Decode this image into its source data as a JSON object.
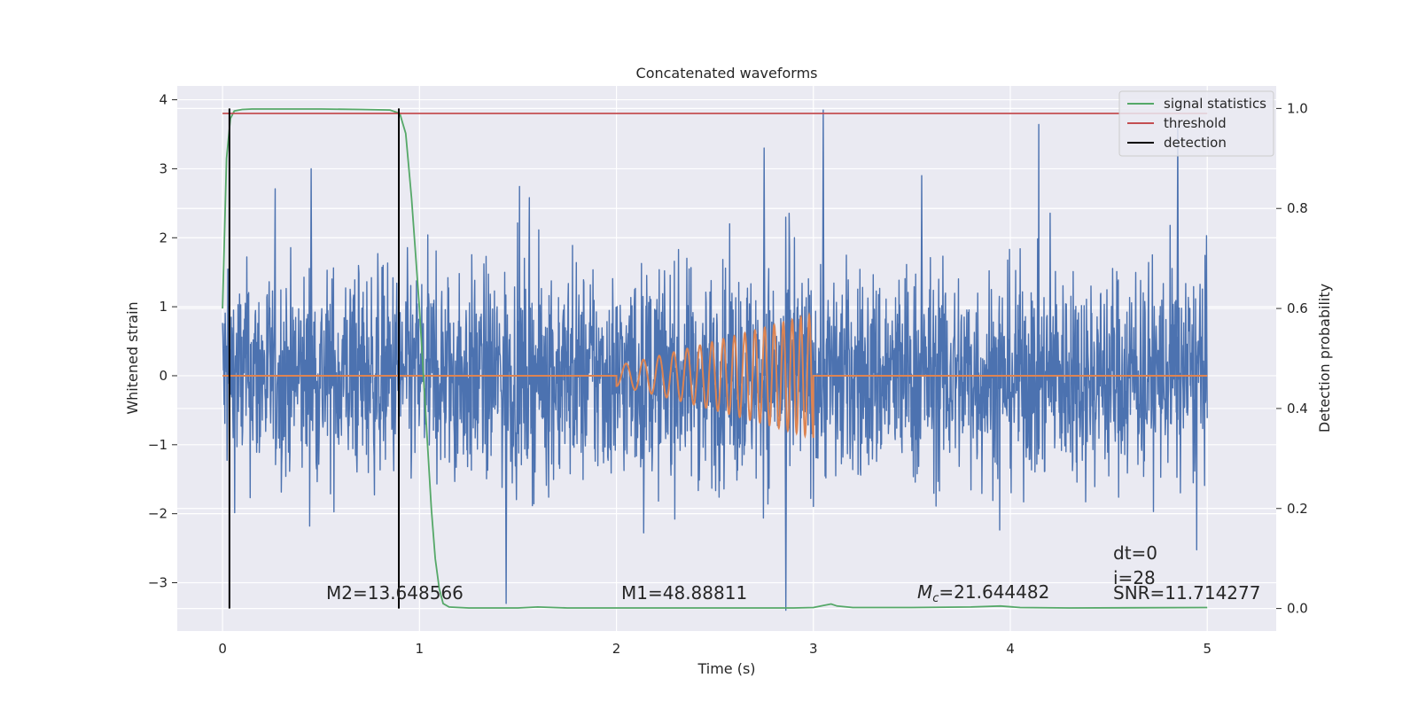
{
  "chart_data": {
    "type": "line",
    "title": "Concatenated waveforms",
    "xlabel": "Time (s)",
    "ylabel_left": "Whitened strain",
    "ylabel_right": "Detection probability",
    "xlim": [
      -0.23,
      5.35
    ],
    "ylim_left": [
      -3.7,
      4.2
    ],
    "ylim_right": [
      -0.045,
      1.045
    ],
    "x_ticks": [
      0,
      1,
      2,
      3,
      4,
      5
    ],
    "x_tick_labels": [
      "0",
      "1",
      "2",
      "3",
      "4",
      "5"
    ],
    "y_left_ticks": [
      -3,
      -2,
      -1,
      0,
      1,
      2,
      3,
      4
    ],
    "y_left_tick_labels": [
      "−3",
      "−2",
      "−1",
      "0",
      "1",
      "2",
      "3",
      "4"
    ],
    "y_right_ticks": [
      0.0,
      0.2,
      0.4,
      0.6,
      0.8,
      1.0
    ],
    "y_right_tick_labels": [
      "0.0",
      "0.2",
      "0.4",
      "0.6",
      "0.8",
      "1.0"
    ],
    "grid": true,
    "legend_position": "top-right",
    "legend": [
      {
        "label": "signal statistics",
        "color": "#55a868"
      },
      {
        "label": "threshold",
        "color": "#c44e52"
      },
      {
        "label": "detection",
        "color": "#000000"
      }
    ],
    "colors": {
      "noise": "#4c72b0",
      "waveform": "#dd8452",
      "statistics": "#55a868",
      "threshold": "#c44e52",
      "detection": "#000000",
      "plot_background": "#eaeaf2",
      "grid": "#ffffff"
    },
    "series": [
      {
        "name": "signal statistics",
        "axis": "right",
        "x": [
          0.0,
          0.02,
          0.04,
          0.06,
          0.1,
          0.15,
          0.3,
          0.5,
          0.7,
          0.85,
          0.9,
          0.93,
          0.96,
          1.0,
          1.03,
          1.06,
          1.08,
          1.1,
          1.12,
          1.15,
          1.25,
          1.5,
          1.6,
          1.75,
          2.0,
          2.5,
          2.9,
          3.0,
          3.05,
          3.09,
          3.12,
          3.2,
          3.5,
          3.8,
          3.95,
          4.05,
          4.3,
          5.0
        ],
        "y": [
          0.6,
          0.9,
          0.98,
          0.995,
          0.998,
          0.999,
          0.999,
          0.999,
          0.998,
          0.997,
          0.99,
          0.95,
          0.82,
          0.6,
          0.4,
          0.2,
          0.1,
          0.04,
          0.01,
          0.003,
          0.001,
          0.001,
          0.003,
          0.001,
          0.001,
          0.001,
          0.001,
          0.002,
          0.006,
          0.009,
          0.005,
          0.002,
          0.002,
          0.003,
          0.005,
          0.002,
          0.001,
          0.002
        ]
      },
      {
        "name": "threshold",
        "axis": "right",
        "x": [
          0.0,
          5.0
        ],
        "y": [
          0.99,
          0.99
        ]
      },
      {
        "name": "detection",
        "axis": "right",
        "type": "vlines",
        "x": [
          0.035,
          0.895
        ],
        "ymin": 0.0,
        "ymax": 1.0
      }
    ],
    "noise": {
      "axis": "left",
      "x_range": [
        0.0,
        5.0
      ],
      "envelope_max": 2.0,
      "envelope_min": -2.2,
      "peak_max": 3.85,
      "peak_min": -3.4
    },
    "waveform": {
      "axis": "left",
      "x_start": 2.0,
      "x_end": 3.0,
      "amplitude_start": 0.15,
      "amplitude_end": 0.9,
      "baseline": 0.0
    },
    "annotations": {
      "m2": "M2=13.648566",
      "m1": "M1=48.88811",
      "mc_symbol": "M",
      "mc_subscript": "c",
      "mc_value": "=21.644482",
      "dt": "dt=0",
      "index": "i=28",
      "snr": "SNR=11.714277"
    }
  }
}
